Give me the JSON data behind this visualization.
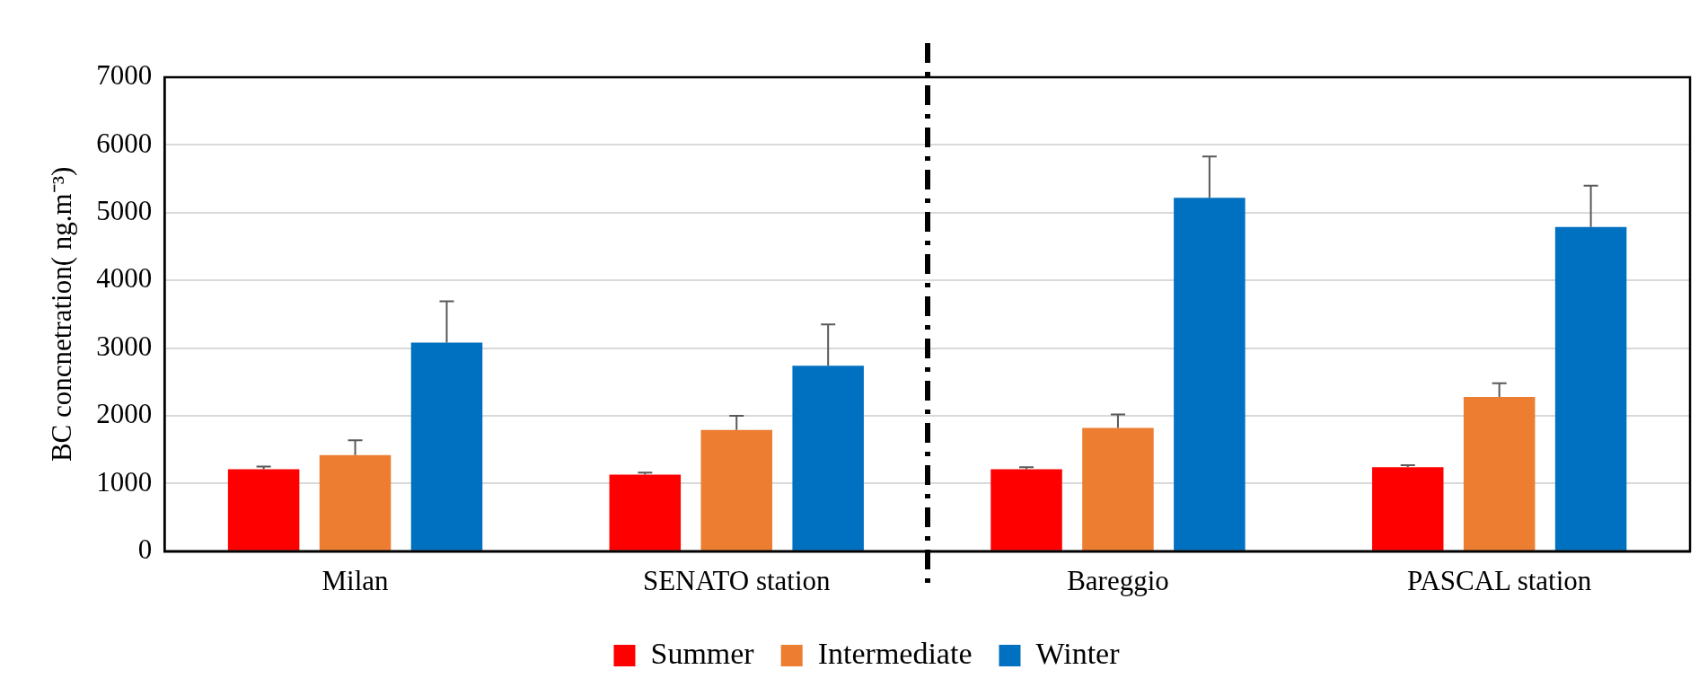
{
  "chart_data": {
    "type": "bar",
    "ylabel": "BC concnetration( ng.m⁻³)",
    "categories": [
      "Milan",
      "SENATO station",
      "Bareggio",
      "PASCAL station"
    ],
    "series": [
      {
        "name": "Summer",
        "color": "#ff0000",
        "values": [
          1210,
          1130,
          1210,
          1240
        ],
        "errors": [
          [
            1210,
            1250
          ],
          [
            1130,
            1160
          ],
          [
            1210,
            1240
          ],
          [
            1240,
            1270
          ]
        ]
      },
      {
        "name": "Intermediate",
        "color": "#ed7d31",
        "values": [
          1420,
          1790,
          1820,
          2280
        ],
        "errors": [
          [
            1420,
            1640
          ],
          [
            1790,
            2000
          ],
          [
            1820,
            2020
          ],
          [
            2280,
            2480
          ]
        ]
      },
      {
        "name": "Winter",
        "color": "#0070c0",
        "values": [
          3080,
          2740,
          5220,
          4790
        ],
        "errors": [
          [
            3080,
            3690
          ],
          [
            2740,
            3350
          ],
          [
            5220,
            5830
          ],
          [
            4790,
            5400
          ]
        ]
      }
    ],
    "ylim": [
      0,
      7000
    ],
    "yticks": [
      0,
      1000,
      2000,
      3000,
      4000,
      5000,
      6000,
      7000
    ],
    "grid": "y",
    "legend": "bottom"
  }
}
